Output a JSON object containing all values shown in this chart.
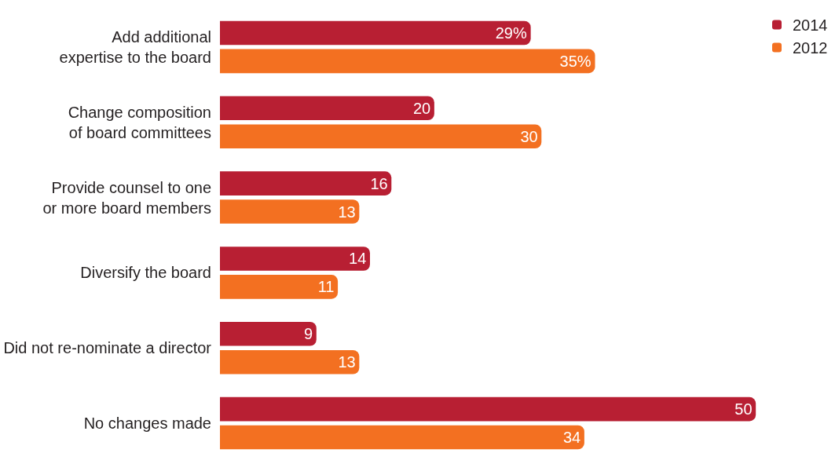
{
  "chart_data": {
    "type": "bar",
    "orientation": "horizontal",
    "legend": "top right",
    "categories": [
      "Add additional\nexpertise to the board",
      "Change composition\nof board committees",
      "Provide counsel to one\nor more board members",
      "Diversify the board",
      "Did not re-nominate a director",
      "No changes made"
    ],
    "series": [
      {
        "name": "2014",
        "color": "#b81f33",
        "values": [
          29,
          20,
          16,
          14,
          9,
          50
        ],
        "value_labels": [
          "29%",
          "20",
          "16",
          "14",
          "9",
          "50"
        ]
      },
      {
        "name": "2012",
        "color": "#f37021",
        "values": [
          35,
          30,
          13,
          11,
          13,
          34
        ],
        "value_labels": [
          "35%",
          "30",
          "13",
          "11",
          "13",
          "34"
        ]
      }
    ]
  }
}
